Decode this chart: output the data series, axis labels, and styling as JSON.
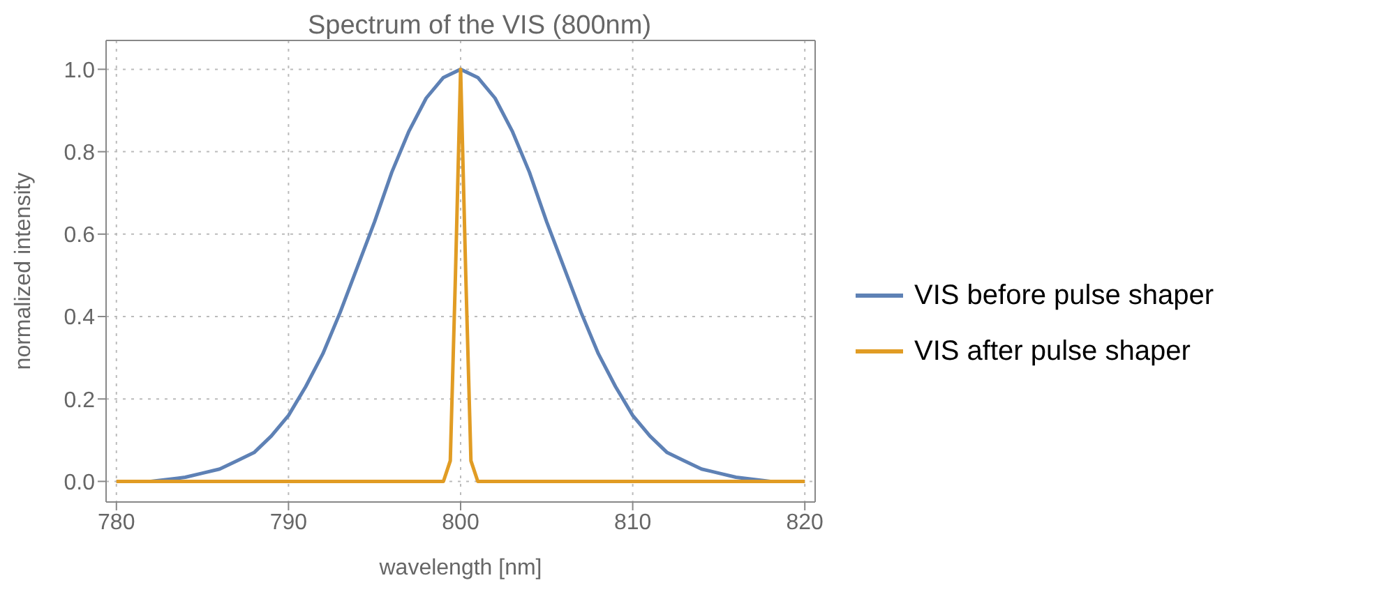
{
  "chart_data": {
    "type": "line",
    "title": "Spectrum of the VIS (800nm)",
    "xlabel": "wavelength [nm]",
    "ylabel": "normalized intensity",
    "xlim": [
      779.4,
      820.6
    ],
    "xticks": [
      780,
      790,
      800,
      810,
      820
    ],
    "ylim": [
      -0.05,
      1.07
    ],
    "yticks": [
      {
        "value": 0,
        "label": "0.0"
      },
      0.2,
      0.4,
      0.6,
      0.8,
      {
        "value": 1,
        "label": "1.0"
      }
    ],
    "grid": true,
    "legend": "right",
    "line_style": "solid",
    "marker": "none",
    "series": [
      {
        "name": "VIS before pulse shaper",
        "color": "#5e81b5",
        "x": [
          780,
          782,
          784,
          785,
          786,
          787,
          788,
          789,
          790,
          791,
          792,
          793,
          794,
          795,
          796,
          797,
          798,
          799,
          800,
          801,
          802,
          803,
          804,
          805,
          806,
          807,
          808,
          809,
          810,
          811,
          812,
          813,
          814,
          815,
          816,
          818,
          820
        ],
        "values": [
          0.0,
          0.0,
          0.01,
          0.02,
          0.03,
          0.05,
          0.07,
          0.11,
          0.16,
          0.23,
          0.31,
          0.41,
          0.52,
          0.63,
          0.75,
          0.85,
          0.93,
          0.98,
          1.0,
          0.98,
          0.93,
          0.85,
          0.75,
          0.63,
          0.52,
          0.41,
          0.31,
          0.23,
          0.16,
          0.11,
          0.07,
          0.05,
          0.03,
          0.02,
          0.01,
          0.0,
          0.0
        ]
      },
      {
        "name": "VIS after pulse shaper",
        "color": "#e19c24",
        "x": [
          780,
          799.0,
          799.4,
          799.7,
          800,
          800.3,
          800.6,
          801.0,
          820
        ],
        "values": [
          0.0,
          0.0,
          0.05,
          0.5,
          1.0,
          0.5,
          0.05,
          0.0,
          0.0
        ]
      }
    ]
  }
}
